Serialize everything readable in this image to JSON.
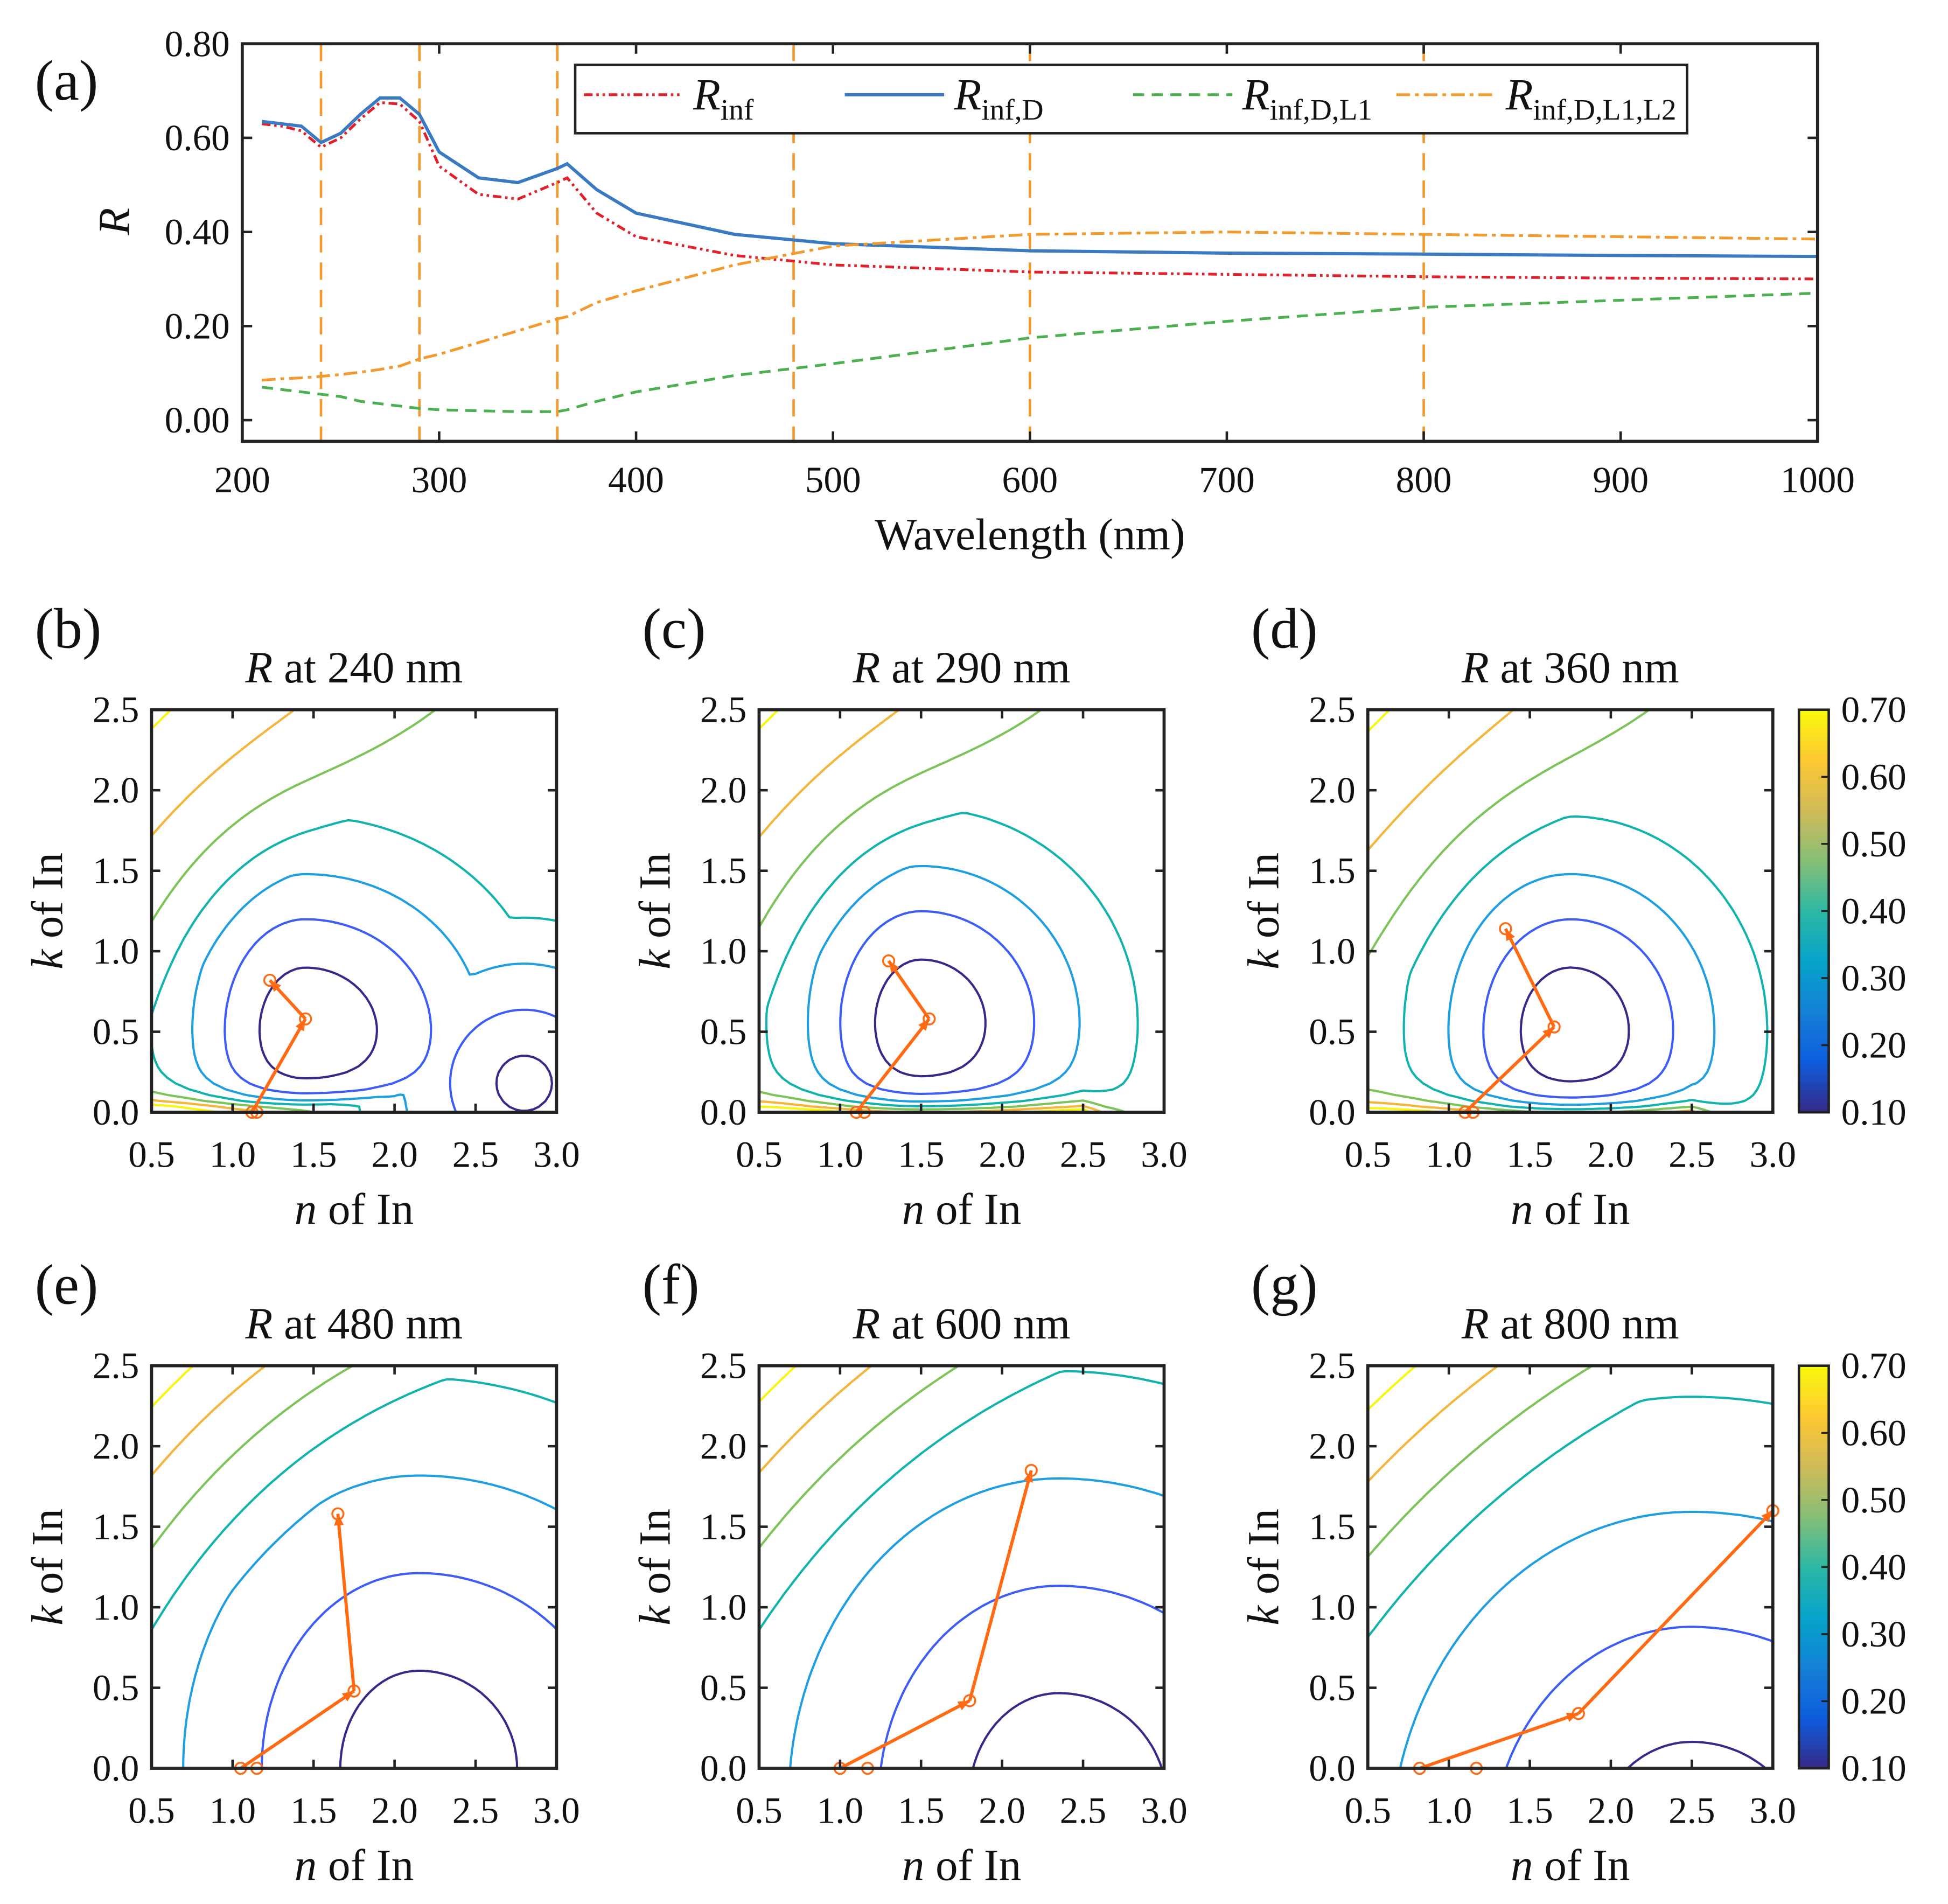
{
  "chart_data": [
    {
      "id": "a",
      "panel_label": "(a)",
      "type": "line",
      "xlabel": "Wavelength (nm)",
      "ylabel": "R",
      "xlim": [
        200,
        1000
      ],
      "ylim": [
        -0.045,
        0.8
      ],
      "xticks": [
        "200",
        "300",
        "400",
        "500",
        "600",
        "700",
        "800",
        "900",
        "1000"
      ],
      "xtick_values": [
        200,
        300,
        400,
        500,
        600,
        700,
        800,
        900,
        1000
      ],
      "yticks": [
        "0.00",
        "0.20",
        "0.40",
        "0.60",
        "0.80"
      ],
      "ytick_values": [
        0,
        0.2,
        0.4,
        0.6,
        0.8
      ],
      "legend_position": "top-right",
      "vertical_markers": [
        240,
        290,
        360,
        480,
        600,
        800
      ],
      "marker_color": "#f39a2e",
      "x": [
        210,
        220,
        230,
        240,
        250,
        260,
        270,
        280,
        290,
        300,
        320,
        340,
        360,
        365,
        380,
        400,
        450,
        500,
        600,
        700,
        800,
        900,
        1000
      ],
      "series": [
        {
          "symbol": "R",
          "sub": "inf",
          "color": "#e0202a",
          "dash": "7 3 2 3 2 3",
          "values": [
            0.63,
            0.625,
            0.615,
            0.58,
            0.6,
            0.64,
            0.675,
            0.672,
            0.635,
            0.54,
            0.48,
            0.47,
            0.505,
            0.515,
            0.44,
            0.39,
            0.35,
            0.33,
            0.315,
            0.31,
            0.305,
            0.302,
            0.3
          ]
        },
        {
          "symbol": "R",
          "sub": "inf,D",
          "color": "#3a7ac2",
          "dash": "",
          "values": [
            0.635,
            0.63,
            0.625,
            0.59,
            0.61,
            0.65,
            0.685,
            0.685,
            0.65,
            0.57,
            0.515,
            0.505,
            0.535,
            0.545,
            0.49,
            0.44,
            0.395,
            0.375,
            0.36,
            0.355,
            0.353,
            0.35,
            0.348
          ]
        },
        {
          "symbol": "R",
          "sub": "inf,D,L1",
          "color": "#4caf50",
          "dash": "9 6",
          "values": [
            0.07,
            0.065,
            0.06,
            0.055,
            0.05,
            0.04,
            0.035,
            0.03,
            0.025,
            0.022,
            0.02,
            0.018,
            0.018,
            0.022,
            0.04,
            0.06,
            0.095,
            0.12,
            0.175,
            0.21,
            0.24,
            0.255,
            0.27
          ]
        },
        {
          "symbol": "R",
          "sub": "inf,D,L1,L2",
          "color": "#f39a2e",
          "dash": "11 4 3 4",
          "values": [
            0.085,
            0.088,
            0.09,
            0.093,
            0.097,
            0.102,
            0.108,
            0.115,
            0.13,
            0.14,
            0.165,
            0.19,
            0.215,
            0.22,
            0.25,
            0.275,
            0.33,
            0.37,
            0.395,
            0.4,
            0.395,
            0.39,
            0.385
          ]
        }
      ]
    },
    {
      "id": "b",
      "panel_label": "(b)",
      "type": "contour",
      "title_symbol": "R",
      "title_rest": " at 240 nm",
      "wavelength": 240,
      "path": [
        [
          1.23,
          0.82
        ],
        [
          1.45,
          0.58
        ],
        [
          1.12,
          0.0
        ]
      ],
      "extra_point": [
        1.15,
        0.0
      ]
    },
    {
      "id": "c",
      "panel_label": "(c)",
      "type": "contour",
      "title_symbol": "R",
      "title_rest": " at 290 nm",
      "wavelength": 290,
      "path": [
        [
          1.3,
          0.94
        ],
        [
          1.55,
          0.58
        ],
        [
          1.1,
          0.0
        ]
      ],
      "extra_point": [
        1.15,
        0.0
      ]
    },
    {
      "id": "d",
      "panel_label": "(d)",
      "type": "contour",
      "title_symbol": "R",
      "title_rest": " at 360 nm",
      "wavelength": 360,
      "path": [
        [
          1.35,
          1.14
        ],
        [
          1.65,
          0.53
        ],
        [
          1.1,
          0.0
        ]
      ],
      "extra_point": [
        1.15,
        0.0
      ]
    },
    {
      "id": "e",
      "panel_label": "(e)",
      "type": "contour",
      "title_symbol": "R",
      "title_rest": " at 480 nm",
      "wavelength": 480,
      "path": [
        [
          1.65,
          1.58
        ],
        [
          1.75,
          0.48
        ],
        [
          1.05,
          0.0
        ]
      ],
      "extra_point": [
        1.15,
        0.0
      ]
    },
    {
      "id": "f",
      "panel_label": "(f)",
      "type": "contour",
      "title_symbol": "R",
      "title_rest": " at 600 nm",
      "wavelength": 600,
      "path": [
        [
          2.18,
          1.85
        ],
        [
          1.8,
          0.42
        ],
        [
          1.0,
          0.0
        ]
      ],
      "extra_point": [
        1.17,
        0.0
      ]
    },
    {
      "id": "g",
      "panel_label": "(g)",
      "type": "contour",
      "title_symbol": "R",
      "title_rest": " at 800 nm",
      "wavelength": 800,
      "path": [
        [
          3.0,
          1.6
        ],
        [
          1.8,
          0.34
        ],
        [
          0.82,
          0.0
        ]
      ],
      "extra_point": [
        1.17,
        0.0
      ]
    }
  ],
  "contour_common": {
    "xlabel_symbol": "n",
    "xlabel_rest": " of In",
    "ylabel_symbol": "k",
    "ylabel_rest": " of In",
    "xlim": [
      0.5,
      3.0
    ],
    "ylim": [
      0,
      2.5
    ],
    "xticks": [
      "0.5",
      "1.0",
      "1.5",
      "2.0",
      "2.5",
      "3.0"
    ],
    "xtick_values": [
      0.5,
      1.0,
      1.5,
      2.0,
      2.5,
      3.0
    ],
    "yticks": [
      "0.0",
      "0.5",
      "1.0",
      "1.5",
      "2.0",
      "2.5"
    ],
    "ytick_values": [
      0,
      0.5,
      1.0,
      1.5,
      2.0,
      2.5
    ],
    "levels": [
      0.1,
      0.2,
      0.3,
      0.4,
      0.5,
      0.6,
      0.7
    ],
    "level_colors": [
      "#352a87",
      "#3d5df5",
      "#1f9ee0",
      "#13b3ad",
      "#7cc45a",
      "#f5b43a",
      "#f9f50e"
    ],
    "path_color": "#ff6a13"
  },
  "colorbar": {
    "ticks": [
      "0.70",
      "0.60",
      "0.50",
      "0.40",
      "0.30",
      "0.20",
      "0.10"
    ],
    "tick_values": [
      0.7,
      0.6,
      0.5,
      0.4,
      0.3,
      0.2,
      0.1
    ],
    "range": [
      0.1,
      0.7
    ],
    "colors": [
      "#352a87",
      "#0f5cdd",
      "#1481d6",
      "#06a4ca",
      "#2eb7a4",
      "#87bf77",
      "#d1bb59",
      "#fec832",
      "#f9fb0e"
    ]
  }
}
